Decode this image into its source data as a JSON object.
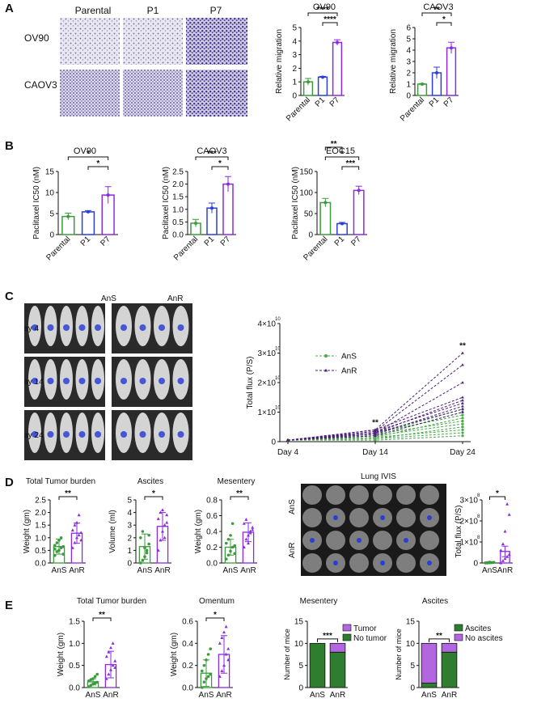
{
  "panel_letters": [
    "A",
    "B",
    "C",
    "D",
    "E"
  ],
  "colors": {
    "green": "#3c9b3c",
    "blue": "#2b3fd6",
    "purple": "#8a2be2",
    "darkgreen": "#2f7d2f",
    "violet": "#b266e0",
    "dashgreen": "#4aa84a",
    "dashpurple": "#4b1f7a"
  },
  "panelA_images": {
    "columns": [
      "Parental",
      "P1",
      "P7"
    ],
    "rows": [
      "OV90",
      "CAOV3"
    ]
  },
  "panelC_images": {
    "groups": [
      "AnS",
      "AnR"
    ],
    "rows": [
      "Day 4",
      "Day 14",
      "Day 24"
    ]
  },
  "panelD_images": {
    "title": "Lung IVIS",
    "rows": [
      "AnS",
      "AnR"
    ]
  },
  "chart_data": [
    {
      "id": "A1",
      "type": "bar",
      "title": "OV90",
      "ylabel": "Relative migration",
      "categories": [
        "Parental",
        "P1",
        "P7"
      ],
      "values": [
        1.0,
        1.35,
        3.9
      ],
      "errors": [
        0.25,
        0.05,
        0.2
      ],
      "ylim": [
        0,
        5
      ],
      "yticks": [
        "0",
        "1",
        "2",
        "3",
        "4",
        "5"
      ],
      "colors": [
        "#3c9b3c",
        "#2b3fd6",
        "#8a2be2"
      ],
      "sig": [
        [
          "0",
          "2",
          "****"
        ],
        [
          "1",
          "2",
          "****"
        ]
      ]
    },
    {
      "id": "A2",
      "type": "bar",
      "title": "CAOV3",
      "ylabel": "Relative migration",
      "categories": [
        "Parental",
        "P1",
        "P7"
      ],
      "values": [
        1.0,
        2.0,
        4.2
      ],
      "errors": [
        0.05,
        0.5,
        0.5
      ],
      "ylim": [
        0,
        6
      ],
      "yticks": [
        "0",
        "1",
        "2",
        "3",
        "4",
        "5",
        "6"
      ],
      "colors": [
        "#3c9b3c",
        "#2b3fd6",
        "#8a2be2"
      ],
      "sig": [
        [
          "0",
          "2",
          "**"
        ],
        [
          "1",
          "2",
          "*"
        ]
      ]
    },
    {
      "id": "B1",
      "type": "bar",
      "title": "OV90",
      "ylabel": "Paclitaxel IC50 (nM)",
      "categories": [
        "Parental",
        "P1",
        "P7"
      ],
      "values": [
        4.3,
        5.4,
        9.4
      ],
      "errors": [
        0.8,
        0.3,
        2.0
      ],
      "ylim": [
        0,
        15
      ],
      "yticks": [
        "0",
        "5",
        "10",
        "15"
      ],
      "colors": [
        "#3c9b3c",
        "#2b3fd6",
        "#8a2be2"
      ],
      "sig": [
        [
          "0",
          "2",
          "*"
        ],
        [
          "1",
          "2",
          "*"
        ]
      ]
    },
    {
      "id": "B2",
      "type": "bar",
      "title": "CAOV3",
      "ylabel": "Paclitaxel IC50 (nM)",
      "categories": [
        "Parental",
        "P1",
        "P7"
      ],
      "values": [
        0.45,
        1.05,
        2.0
      ],
      "errors": [
        0.15,
        0.2,
        0.3
      ],
      "ylim": [
        0,
        2.5
      ],
      "yticks": [
        "0.0",
        "0.5",
        "1.0",
        "1.5",
        "2.0",
        "2.5"
      ],
      "colors": [
        "#3c9b3c",
        "#2b3fd6",
        "#8a2be2"
      ],
      "sig": [
        [
          "0",
          "2",
          "***"
        ],
        [
          "1",
          "2",
          "*"
        ]
      ]
    },
    {
      "id": "B3",
      "type": "bar",
      "title": "EOC15",
      "ylabel": "Paclitaxel IC50 (nM)",
      "categories": [
        "Parental",
        "P1",
        "P7"
      ],
      "values": [
        76,
        26,
        105
      ],
      "errors": [
        10,
        3,
        10
      ],
      "ylim": [
        0,
        150
      ],
      "yticks": [
        "0",
        "50",
        "100",
        "150"
      ],
      "colors": [
        "#3c9b3c",
        "#2b3fd6",
        "#8a2be2"
      ],
      "sig": [
        [
          "0",
          "1",
          "**"
        ],
        [
          "0",
          "2",
          "*"
        ],
        [
          "1",
          "2",
          "***"
        ]
      ]
    },
    {
      "id": "C1",
      "type": "line",
      "ylabel": "Total flux (P/S)",
      "x": [
        "Day 4",
        "Day 14",
        "Day 24"
      ],
      "ytick_labels": [
        "0",
        "1×10",
        "2×10",
        "3×10",
        "4×10"
      ],
      "ytick_exps": [
        "",
        "10",
        "10",
        "10",
        "10"
      ],
      "ylim": [
        0,
        4
      ],
      "legend": [
        "AnS",
        "AnR"
      ],
      "series_AnS": [
        [
          0.05,
          0.25,
          1.1
        ],
        [
          0.05,
          0.2,
          1.0
        ],
        [
          0.05,
          0.3,
          0.9
        ],
        [
          0.05,
          0.15,
          0.8
        ],
        [
          0.05,
          0.25,
          0.7
        ],
        [
          0.05,
          0.2,
          0.6
        ],
        [
          0.05,
          0.1,
          0.5
        ],
        [
          0.05,
          0.15,
          0.4
        ],
        [
          0.05,
          0.1,
          0.3
        ],
        [
          0.05,
          0.05,
          0.2
        ]
      ],
      "series_AnR": [
        [
          0.05,
          0.4,
          3.0
        ],
        [
          0.05,
          0.35,
          2.6
        ],
        [
          0.05,
          0.3,
          2.0
        ],
        [
          0.05,
          0.4,
          1.5
        ],
        [
          0.05,
          0.3,
          1.4
        ],
        [
          0.05,
          0.35,
          1.3
        ],
        [
          0.05,
          0.25,
          1.2
        ],
        [
          0.05,
          0.3,
          1.1
        ],
        [
          0.05,
          0.2,
          1.0
        ]
      ],
      "sig": [
        [
          "Day 14",
          "**"
        ],
        [
          "Day 24",
          "**"
        ]
      ]
    },
    {
      "id": "D1",
      "type": "scatter-bar",
      "title": "Total Tumor burden",
      "ylabel": "Weight (gm)",
      "categories": [
        "AnS",
        "AnR"
      ],
      "values": [
        0.65,
        1.18
      ],
      "errors": [
        0.3,
        0.4
      ],
      "ylim": [
        0,
        2.5
      ],
      "yticks": [
        "0.0",
        "0.5",
        "1.0",
        "1.5",
        "2.0",
        "2.5"
      ],
      "colors": [
        "#3c9b3c",
        "#8a2be2"
      ],
      "points": [
        [
          0.3,
          0.45,
          0.5,
          0.6,
          0.65,
          0.7,
          0.8,
          0.9,
          1.0,
          0.35,
          0.55
        ],
        [
          0.6,
          0.8,
          1.0,
          1.1,
          1.2,
          1.3,
          1.5,
          1.6,
          1.9,
          0.9
        ]
      ],
      "sig": "**"
    },
    {
      "id": "D2",
      "type": "scatter-bar",
      "title": "Ascites",
      "ylabel": "Volume (ml)",
      "categories": [
        "AnS",
        "AnR"
      ],
      "values": [
        1.3,
        2.9
      ],
      "errors": [
        1.0,
        1.1
      ],
      "ylim": [
        0,
        5
      ],
      "yticks": [
        "0",
        "1",
        "2",
        "3",
        "4",
        "5"
      ],
      "colors": [
        "#3c9b3c",
        "#8a2be2"
      ],
      "points": [
        [
          0.0,
          0.2,
          0.5,
          1.0,
          1.5,
          2.0,
          2.5,
          1.2,
          0.8,
          2.2
        ],
        [
          1.0,
          1.8,
          2.5,
          3.0,
          3.2,
          3.5,
          4.0,
          4.2,
          2.0,
          3.8
        ]
      ],
      "sig": "*"
    },
    {
      "id": "D3",
      "type": "scatter-bar",
      "title": "Mesentery",
      "ylabel": "Weight (gm)",
      "categories": [
        "AnS",
        "AnR"
      ],
      "values": [
        0.2,
        0.39
      ],
      "errors": [
        0.1,
        0.12
      ],
      "ylim": [
        0,
        0.8
      ],
      "yticks": [
        "0.0",
        "0.2",
        "0.4",
        "0.6",
        "0.8"
      ],
      "colors": [
        "#3c9b3c",
        "#8a2be2"
      ],
      "points": [
        [
          0.05,
          0.1,
          0.15,
          0.2,
          0.22,
          0.25,
          0.3,
          0.35,
          0.5,
          0.12
        ],
        [
          0.2,
          0.3,
          0.35,
          0.4,
          0.45,
          0.5,
          0.55,
          0.25,
          0.38,
          0.42
        ]
      ],
      "sig": "**"
    },
    {
      "id": "D4",
      "type": "scatter-bar",
      "ylabel": "Total flux (P/S)",
      "categories": [
        "AnS",
        "AnR"
      ],
      "values": [
        0.02,
        0.55
      ],
      "errors": [
        0.02,
        0.25
      ],
      "ylim": [
        0,
        3
      ],
      "ytick_labels": [
        "0",
        "1×10",
        "2×10",
        "3×10"
      ],
      "ytick_exps": [
        "",
        "8",
        "8",
        "8"
      ],
      "colors": [
        "#3c9b3c",
        "#8a2be2"
      ],
      "points": [
        [
          0.0,
          0.0,
          0.01,
          0.02,
          0.03,
          0.01,
          0.02,
          0.04
        ],
        [
          0.0,
          0.1,
          0.2,
          0.3,
          0.4,
          0.6,
          0.9,
          1.5,
          2.8,
          2.3
        ]
      ],
      "sig": "*"
    },
    {
      "id": "E1",
      "type": "scatter-bar",
      "title": "Total Tumor burden",
      "ylabel": "Weight (gm)",
      "categories": [
        "AnS",
        "AnR"
      ],
      "values": [
        0.13,
        0.52
      ],
      "errors": [
        0.07,
        0.3
      ],
      "ylim": [
        0,
        1.5
      ],
      "yticks": [
        "0.0",
        "0.5",
        "1.0",
        "1.5"
      ],
      "colors": [
        "#3c9b3c",
        "#8a2be2"
      ],
      "points": [
        [
          0.02,
          0.05,
          0.08,
          0.1,
          0.12,
          0.15,
          0.18,
          0.2,
          0.25,
          0.3
        ],
        [
          0.2,
          0.3,
          0.4,
          0.5,
          0.6,
          0.7,
          0.8,
          0.9,
          1.0,
          0.45
        ]
      ],
      "sig": "**"
    },
    {
      "id": "E2",
      "type": "scatter-bar",
      "title": "Omentum",
      "ylabel": "Weight (gm)",
      "categories": [
        "AnS",
        "AnR"
      ],
      "values": [
        0.13,
        0.3
      ],
      "errors": [
        0.12,
        0.17
      ],
      "ylim": [
        0,
        0.6
      ],
      "yticks": [
        "0.0",
        "0.2",
        "0.4",
        "0.6"
      ],
      "colors": [
        "#3c9b3c",
        "#8a2be2"
      ],
      "points": [
        [
          0.0,
          0.05,
          0.08,
          0.1,
          0.12,
          0.15,
          0.2,
          0.25,
          0.3,
          0.35
        ],
        [
          0.1,
          0.15,
          0.2,
          0.3,
          0.35,
          0.4,
          0.45,
          0.5,
          0.55,
          0.25
        ]
      ],
      "sig": "*"
    },
    {
      "id": "E3",
      "type": "stacked-bar",
      "title": "Mesentery",
      "ylabel": "Number of mice",
      "categories": [
        "AnS",
        "AnR"
      ],
      "ylim": [
        0,
        15
      ],
      "yticks": [
        "0",
        "5",
        "10",
        "15"
      ],
      "legend": [
        "Tumor",
        "No tumor"
      ],
      "series": [
        {
          "name": "No tumor",
          "values": [
            10,
            8
          ],
          "color": "#2f7d2f"
        },
        {
          "name": "Tumor",
          "values": [
            0,
            2
          ],
          "color": "#b266e0"
        }
      ],
      "sig": "***"
    },
    {
      "id": "E4",
      "type": "stacked-bar",
      "title": "Ascites",
      "ylabel": "Number of mice",
      "categories": [
        "AnS",
        "AnR"
      ],
      "ylim": [
        0,
        15
      ],
      "yticks": [
        "0",
        "5",
        "10",
        "15"
      ],
      "legend": [
        "Ascites",
        "No ascites"
      ],
      "series": [
        {
          "name": "Ascites",
          "values": [
            1,
            8
          ],
          "color": "#2f7d2f"
        },
        {
          "name": "No ascites",
          "values": [
            9,
            2
          ],
          "color": "#b266e0"
        }
      ],
      "sig": "**"
    }
  ]
}
